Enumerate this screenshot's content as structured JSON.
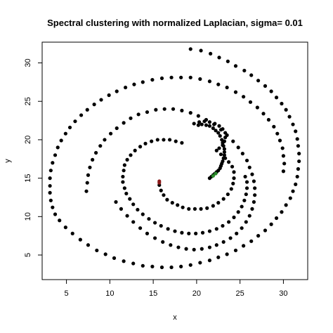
{
  "chart_data": {
    "type": "scatter",
    "title": "Spectral clustering with normalized Laplacian, sigma= 0.01",
    "xlabel": "x",
    "ylabel": "y",
    "xlim": [
      2.2,
      32.8
    ],
    "ylim": [
      1.8,
      32.7
    ],
    "xticks": [
      5,
      10,
      15,
      20,
      25,
      30
    ],
    "yticks": [
      5,
      10,
      15,
      20,
      25,
      30
    ],
    "grid": false,
    "legend": "none",
    "series": [
      {
        "color": "#000000",
        "points": [
          [
            19.3,
            31.8
          ],
          [
            20.5,
            31.6
          ],
          [
            21.6,
            31.2
          ],
          [
            22.6,
            30.7
          ],
          [
            23.6,
            30.2
          ],
          [
            24.5,
            29.6
          ],
          [
            25.5,
            29.0
          ],
          [
            26.3,
            28.4
          ],
          [
            27.1,
            27.7
          ],
          [
            27.9,
            27.0
          ],
          [
            28.6,
            26.3
          ],
          [
            29.2,
            25.5
          ],
          [
            29.8,
            24.7
          ],
          [
            30.3,
            23.9
          ],
          [
            30.7,
            23.0
          ],
          [
            31.1,
            22.0
          ],
          [
            31.4,
            21.1
          ],
          [
            31.6,
            20.1
          ],
          [
            31.7,
            19.2
          ],
          [
            31.8,
            18.2
          ],
          [
            31.8,
            17.2
          ],
          [
            31.7,
            16.2
          ],
          [
            31.6,
            15.2
          ],
          [
            31.4,
            14.2
          ],
          [
            31.1,
            13.3
          ],
          [
            30.8,
            12.4
          ],
          [
            30.3,
            11.5
          ],
          [
            29.8,
            10.6
          ],
          [
            29.2,
            9.8
          ],
          [
            28.6,
            9.0
          ],
          [
            27.9,
            8.2
          ],
          [
            27.1,
            7.5
          ],
          [
            26.3,
            6.8
          ],
          [
            25.4,
            6.2
          ],
          [
            24.5,
            5.6
          ],
          [
            23.5,
            5.1
          ],
          [
            22.5,
            4.7
          ],
          [
            21.5,
            4.3
          ],
          [
            20.4,
            4.0
          ],
          [
            19.3,
            3.7
          ],
          [
            18.2,
            3.5
          ],
          [
            17.1,
            3.4
          ],
          [
            16.0,
            3.4
          ],
          [
            14.9,
            3.5
          ],
          [
            13.8,
            3.6
          ],
          [
            12.7,
            3.9
          ],
          [
            11.6,
            4.2
          ],
          [
            10.5,
            4.6
          ],
          [
            9.5,
            5.1
          ],
          [
            8.5,
            5.6
          ],
          [
            7.5,
            6.3
          ],
          [
            6.6,
            7.0
          ],
          [
            5.7,
            7.8
          ],
          [
            4.9,
            8.6
          ],
          [
            4.2,
            9.5
          ],
          [
            3.7,
            10.3
          ],
          [
            3.4,
            11.2
          ],
          [
            3.2,
            12.1
          ],
          [
            3.1,
            13.1
          ],
          [
            3.1,
            14.0
          ],
          [
            3.1,
            15.0
          ],
          [
            3.2,
            16.0
          ],
          [
            3.4,
            17.0
          ],
          [
            3.7,
            18.0
          ],
          [
            4.0,
            19.0
          ],
          [
            4.4,
            19.9
          ],
          [
            4.9,
            20.8
          ],
          [
            5.4,
            21.6
          ],
          [
            6.0,
            22.4
          ],
          [
            6.7,
            23.2
          ],
          [
            7.4,
            23.9
          ],
          [
            8.2,
            24.6
          ],
          [
            9.0,
            25.2
          ],
          [
            9.9,
            25.8
          ],
          [
            10.8,
            26.3
          ],
          [
            11.8,
            26.8
          ],
          [
            12.8,
            27.2
          ],
          [
            13.8,
            27.5
          ],
          [
            14.9,
            27.8
          ],
          [
            16.0,
            28.0
          ],
          [
            17.1,
            28.1
          ],
          [
            18.2,
            28.1
          ],
          [
            19.3,
            28.1
          ],
          [
            20.4,
            27.9
          ],
          [
            21.5,
            27.6
          ],
          [
            22.5,
            27.2
          ],
          [
            23.5,
            26.8
          ],
          [
            24.5,
            26.2
          ],
          [
            25.4,
            25.6
          ],
          [
            26.2,
            24.9
          ],
          [
            27.0,
            24.2
          ],
          [
            27.7,
            23.4
          ],
          [
            28.3,
            22.6
          ],
          [
            28.9,
            21.7
          ],
          [
            29.3,
            20.8
          ],
          [
            29.6,
            19.9
          ],
          [
            29.9,
            18.9
          ],
          [
            30.0,
            17.9
          ],
          [
            30.1,
            16.9
          ],
          [
            30.0,
            15.9
          ],
          [
            7.3,
            13.3
          ],
          [
            7.4,
            14.4
          ],
          [
            7.5,
            15.4
          ],
          [
            7.7,
            16.4
          ],
          [
            8.0,
            17.4
          ],
          [
            8.4,
            18.3
          ],
          [
            8.9,
            19.2
          ],
          [
            9.4,
            20.0
          ],
          [
            10.1,
            20.8
          ],
          [
            10.8,
            21.5
          ],
          [
            11.6,
            22.2
          ],
          [
            12.4,
            22.8
          ],
          [
            13.3,
            23.3
          ],
          [
            14.3,
            23.6
          ],
          [
            15.3,
            23.9
          ],
          [
            16.3,
            24.0
          ],
          [
            17.3,
            24.0
          ],
          [
            18.3,
            23.8
          ],
          [
            19.3,
            23.5
          ],
          [
            20.2,
            23.1
          ],
          [
            21.1,
            22.6
          ],
          [
            22.0,
            22.0
          ],
          [
            22.8,
            21.3
          ],
          [
            23.5,
            20.6
          ],
          [
            24.2,
            19.8
          ],
          [
            24.8,
            19.0
          ],
          [
            25.3,
            18.2
          ],
          [
            25.8,
            17.3
          ],
          [
            26.1,
            16.4
          ],
          [
            26.4,
            15.5
          ],
          [
            26.6,
            14.6
          ],
          [
            26.7,
            13.7
          ],
          [
            26.7,
            12.8
          ],
          [
            26.6,
            11.9
          ],
          [
            26.4,
            11.0
          ],
          [
            26.1,
            10.1
          ],
          [
            25.7,
            9.3
          ],
          [
            25.2,
            8.5
          ],
          [
            24.6,
            7.8
          ],
          [
            23.9,
            7.2
          ],
          [
            23.1,
            6.7
          ],
          [
            22.3,
            6.3
          ],
          [
            21.5,
            6.0
          ],
          [
            20.6,
            5.8
          ],
          [
            19.7,
            5.7
          ],
          [
            18.8,
            5.8
          ],
          [
            17.9,
            6.0
          ],
          [
            17.0,
            6.3
          ],
          [
            16.1,
            6.7
          ],
          [
            15.2,
            7.2
          ],
          [
            14.3,
            7.8
          ],
          [
            13.5,
            8.5
          ],
          [
            12.7,
            9.3
          ],
          [
            12.0,
            10.1
          ],
          [
            11.3,
            11.0
          ],
          [
            10.7,
            11.9
          ],
          [
            18.3,
            19.6
          ],
          [
            17.6,
            19.8
          ],
          [
            16.9,
            20.0
          ],
          [
            16.2,
            20.0
          ],
          [
            15.5,
            20.0
          ],
          [
            14.8,
            19.8
          ],
          [
            14.1,
            19.5
          ],
          [
            13.5,
            19.1
          ],
          [
            12.9,
            18.6
          ],
          [
            12.4,
            18.0
          ],
          [
            12.0,
            17.4
          ],
          [
            11.7,
            16.7
          ],
          [
            11.6,
            16.0
          ],
          [
            11.5,
            15.2
          ],
          [
            11.5,
            14.5
          ],
          [
            11.7,
            13.7
          ],
          [
            11.9,
            13.0
          ],
          [
            12.3,
            12.3
          ],
          [
            12.7,
            11.6
          ],
          [
            13.2,
            10.9
          ],
          [
            13.8,
            10.3
          ],
          [
            14.5,
            9.7
          ],
          [
            15.2,
            9.2
          ],
          [
            15.9,
            8.8
          ],
          [
            16.7,
            8.4
          ],
          [
            17.5,
            8.1
          ],
          [
            18.3,
            7.9
          ],
          [
            19.1,
            7.8
          ],
          [
            19.9,
            7.8
          ],
          [
            20.7,
            7.9
          ],
          [
            21.5,
            8.1
          ],
          [
            22.3,
            8.4
          ],
          [
            23.0,
            8.8
          ],
          [
            23.7,
            9.3
          ],
          [
            24.3,
            9.9
          ],
          [
            24.8,
            10.6
          ],
          [
            25.2,
            11.3
          ],
          [
            25.5,
            12.1
          ],
          [
            25.7,
            12.9
          ],
          [
            25.8,
            13.7
          ],
          [
            25.8,
            14.5
          ],
          [
            25.6,
            15.2
          ],
          [
            15.7,
            14.1
          ],
          [
            15.9,
            13.4
          ],
          [
            16.2,
            12.8
          ],
          [
            16.6,
            12.2
          ],
          [
            17.2,
            11.8
          ],
          [
            17.8,
            11.5
          ],
          [
            18.4,
            11.2
          ],
          [
            19.1,
            11.0
          ],
          [
            19.8,
            11.0
          ],
          [
            20.5,
            11.0
          ],
          [
            21.2,
            11.1
          ],
          [
            21.9,
            11.4
          ],
          [
            22.5,
            11.8
          ],
          [
            23.1,
            12.3
          ],
          [
            23.6,
            12.9
          ],
          [
            24.0,
            13.6
          ],
          [
            24.2,
            14.3
          ],
          [
            24.3,
            15.0
          ],
          [
            24.3,
            15.8
          ],
          [
            24.1,
            16.5
          ],
          [
            23.7,
            17.1
          ],
          [
            23.3,
            17.6
          ],
          [
            22.8,
            18.1
          ],
          [
            22.3,
            18.6
          ],
          [
            22.6,
            18.9
          ],
          [
            23.0,
            19.3
          ],
          [
            23.2,
            19.8
          ],
          [
            23.3,
            20.3
          ],
          [
            23.3,
            20.9
          ],
          [
            23.0,
            21.4
          ],
          [
            22.6,
            21.8
          ],
          [
            22.1,
            22.1
          ],
          [
            21.5,
            22.3
          ],
          [
            20.9,
            22.4
          ],
          [
            20.3,
            22.3
          ],
          [
            19.7,
            22.1
          ],
          [
            21.5,
            15.0
          ],
          [
            21.7,
            15.2
          ],
          [
            21.9,
            15.4
          ],
          [
            22.1,
            15.6
          ],
          [
            22.3,
            15.8
          ],
          [
            22.5,
            16.0
          ],
          [
            22.7,
            16.3
          ],
          [
            22.8,
            16.6
          ],
          [
            22.9,
            16.9
          ],
          [
            23.0,
            17.2
          ],
          [
            23.1,
            17.6
          ],
          [
            23.2,
            18.0
          ],
          [
            23.2,
            18.4
          ],
          [
            23.2,
            18.8
          ],
          [
            23.1,
            19.2
          ],
          [
            23.0,
            19.6
          ],
          [
            22.9,
            20.0
          ],
          [
            22.7,
            20.5
          ],
          [
            22.5,
            20.9
          ],
          [
            22.2,
            21.2
          ],
          [
            21.9,
            21.5
          ],
          [
            21.5,
            21.8
          ],
          [
            21.1,
            21.9
          ],
          [
            20.6,
            22.0
          ],
          [
            20.2,
            21.9
          ]
        ]
      },
      {
        "color": "#2a8a2a",
        "points": [
          [
            21.9,
            15.3
          ],
          [
            22.2,
            15.6
          ]
        ]
      },
      {
        "color": "#8b1a1a",
        "points": [
          [
            15.7,
            14.4
          ],
          [
            15.7,
            14.6
          ]
        ]
      }
    ]
  }
}
